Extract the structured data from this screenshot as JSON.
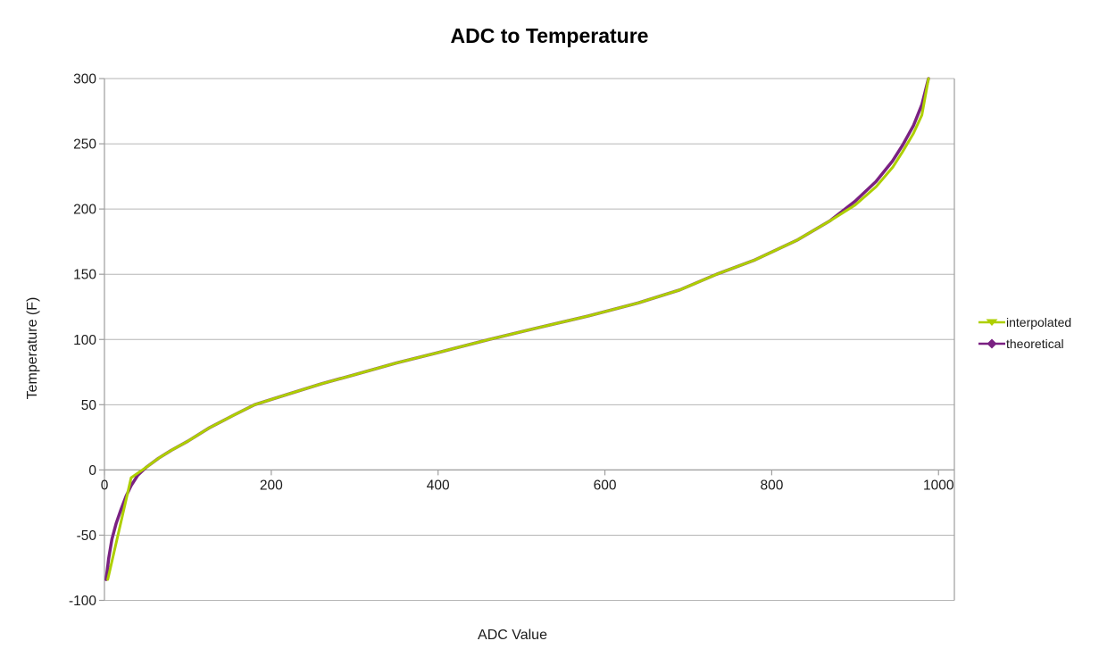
{
  "title": "ADC to Temperature",
  "chart_data": {
    "type": "line",
    "title": "ADC to Temperature",
    "xlabel": "ADC Value",
    "ylabel": "Temperature (F)",
    "xlim": [
      0,
      1019
    ],
    "ylim": [
      -100,
      300
    ],
    "x_ticks": [
      0,
      200,
      400,
      600,
      800,
      1000
    ],
    "y_ticks": [
      300,
      250,
      200,
      150,
      100,
      50,
      0,
      -50,
      -100
    ],
    "grid": "horizontal-only",
    "legend_position": "right-center",
    "grid_color": "#b6b6b6",
    "axis_color": "#9e9e9e",
    "tick_label_color": "#1a1a1a",
    "series": [
      {
        "name": "interpolated",
        "color": "#AECF00",
        "marker": "triangle-down",
        "points": [
          [
            4,
            -84
          ],
          [
            32,
            -6
          ],
          [
            50,
            2
          ],
          [
            65,
            9
          ],
          [
            80,
            15
          ],
          [
            100,
            22
          ],
          [
            125,
            32
          ],
          [
            155,
            42
          ],
          [
            180,
            50
          ],
          [
            220,
            58
          ],
          [
            260,
            66
          ],
          [
            300,
            73
          ],
          [
            350,
            82
          ],
          [
            400,
            90
          ],
          [
            461,
            100
          ],
          [
            520,
            109
          ],
          [
            580,
            118
          ],
          [
            640,
            128
          ],
          [
            690,
            138
          ],
          [
            734,
            150
          ],
          [
            780,
            161
          ],
          [
            830,
            176
          ],
          [
            870,
            191
          ],
          [
            900,
            203
          ],
          [
            925,
            217
          ],
          [
            945,
            232
          ],
          [
            957,
            244
          ],
          [
            970,
            258
          ],
          [
            980,
            272
          ],
          [
            988,
            300
          ]
        ]
      },
      {
        "name": "theoretical",
        "color": "#7A2182",
        "marker": "diamond",
        "points": [
          [
            2,
            -84
          ],
          [
            5,
            -68
          ],
          [
            9,
            -53
          ],
          [
            14,
            -41
          ],
          [
            20,
            -30
          ],
          [
            26,
            -20
          ],
          [
            32,
            -12
          ],
          [
            40,
            -4
          ],
          [
            50,
            2
          ],
          [
            65,
            9
          ],
          [
            80,
            15
          ],
          [
            100,
            22
          ],
          [
            125,
            32
          ],
          [
            155,
            42
          ],
          [
            180,
            50
          ],
          [
            220,
            58
          ],
          [
            260,
            66
          ],
          [
            300,
            73
          ],
          [
            350,
            82
          ],
          [
            400,
            90
          ],
          [
            461,
            100
          ],
          [
            520,
            109
          ],
          [
            580,
            118
          ],
          [
            640,
            128
          ],
          [
            690,
            138
          ],
          [
            734,
            150
          ],
          [
            780,
            161
          ],
          [
            830,
            176
          ],
          [
            870,
            191
          ],
          [
            900,
            206
          ],
          [
            925,
            221
          ],
          [
            945,
            237
          ],
          [
            957,
            249
          ],
          [
            970,
            264
          ],
          [
            980,
            280
          ],
          [
            988,
            300
          ]
        ]
      }
    ]
  }
}
